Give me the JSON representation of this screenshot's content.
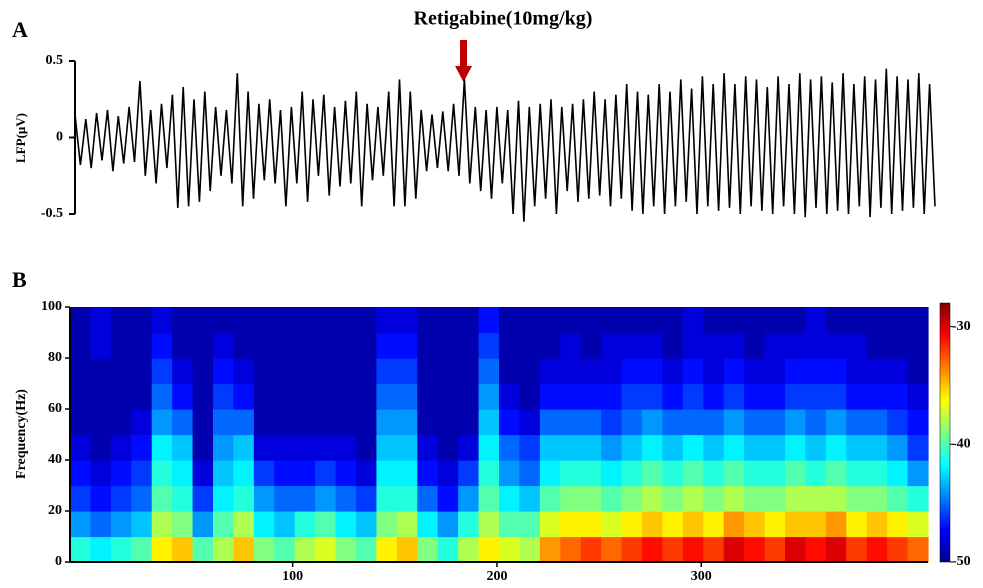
{
  "chart_data": [
    {
      "type": "line",
      "panel": "A",
      "annotation": "Retigabine(10mg/kg)",
      "ylabel": "LFP(μV)",
      "color": "#000000",
      "ylim": [
        -0.5,
        0.5
      ],
      "yticks": [
        0.5,
        0,
        -0.5
      ],
      "values": [
        0.15,
        -0.18,
        0.12,
        -0.2,
        0.16,
        -0.15,
        0.18,
        -0.22,
        0.14,
        -0.17,
        0.2,
        -0.16,
        0.37,
        -0.25,
        0.18,
        -0.3,
        0.22,
        -0.2,
        0.28,
        -0.46,
        0.33,
        -0.45,
        0.25,
        -0.42,
        0.3,
        -0.35,
        0.2,
        -0.25,
        0.18,
        -0.3,
        0.42,
        -0.45,
        0.3,
        -0.4,
        0.22,
        -0.28,
        0.25,
        -0.3,
        0.18,
        -0.45,
        0.2,
        -0.3,
        0.3,
        -0.42,
        0.25,
        -0.25,
        0.28,
        -0.38,
        0.2,
        -0.32,
        0.24,
        -0.3,
        0.3,
        -0.45,
        0.22,
        -0.28,
        0.2,
        -0.25,
        0.3,
        -0.45,
        0.38,
        -0.45,
        0.3,
        -0.4,
        0.18,
        -0.22,
        0.15,
        -0.2,
        0.17,
        -0.22,
        0.22,
        -0.25,
        0.38,
        -0.3,
        0.2,
        -0.35,
        0.18,
        -0.4,
        0.2,
        -0.3,
        0.18,
        -0.5,
        0.24,
        -0.55,
        0.2,
        -0.45,
        0.22,
        -0.4,
        0.25,
        -0.5,
        0.2,
        -0.35,
        0.22,
        -0.42,
        0.25,
        -0.4,
        0.3,
        -0.38,
        0.25,
        -0.45,
        0.28,
        -0.4,
        0.35,
        -0.48,
        0.3,
        -0.5,
        0.28,
        -0.45,
        0.35,
        -0.5,
        0.3,
        -0.45,
        0.38,
        -0.42,
        0.32,
        -0.5,
        0.4,
        -0.45,
        0.35,
        -0.48,
        0.42,
        -0.46,
        0.35,
        -0.5,
        0.4,
        -0.45,
        0.38,
        -0.48,
        0.33,
        -0.5,
        0.4,
        -0.45,
        0.35,
        -0.5,
        0.42,
        -0.52,
        0.38,
        -0.46,
        0.4,
        -0.5,
        0.36,
        -0.48,
        0.42,
        -0.5,
        0.35,
        -0.45,
        0.4,
        -0.52,
        0.38,
        -0.46,
        0.45,
        -0.5,
        0.4,
        -0.48,
        0.38,
        -0.46,
        0.42,
        -0.5,
        0.35,
        -0.45
      ]
    },
    {
      "type": "heatmap",
      "panel": "B",
      "ylabel": "Frequency(Hz)",
      "colormap": "jet",
      "xlim": [
        -9,
        411
      ],
      "xticks": [
        100,
        200,
        300
      ],
      "ylim": [
        0,
        100
      ],
      "yticks": [
        0,
        20,
        40,
        60,
        80,
        100
      ],
      "zlim": [
        -50,
        -28
      ],
      "zticks": [
        -30,
        -40,
        -50
      ],
      "xbins": [
        -9,
        1,
        11,
        21,
        31,
        41,
        51,
        61,
        71,
        81,
        91,
        101,
        111,
        121,
        131,
        141,
        151,
        161,
        171,
        181,
        191,
        201,
        211,
        221,
        231,
        241,
        251,
        261,
        271,
        281,
        291,
        301,
        311,
        321,
        331,
        341,
        351,
        361,
        371,
        381,
        391,
        401,
        411
      ],
      "ybins": [
        0,
        10,
        20,
        30,
        40,
        50,
        60,
        70,
        80,
        90,
        100
      ],
      "values": [
        [
          -41,
          -42,
          -41,
          -40,
          -36,
          -35,
          -40,
          -38,
          -35,
          -39,
          -40,
          -38,
          -37,
          -39,
          -40,
          -36,
          -35,
          -39,
          -41,
          -38,
          -36,
          -37,
          -38,
          -34,
          -33,
          -32,
          -33,
          -32,
          -31,
          -32,
          -31,
          -32,
          -30,
          -31,
          -32,
          -30,
          -31,
          -30,
          -32,
          -31,
          -32,
          -33
        ],
        [
          -44,
          -45,
          -44,
          -43,
          -38,
          -39,
          -44,
          -40,
          -38,
          -42,
          -43,
          -41,
          -40,
          -42,
          -43,
          -39,
          -38,
          -42,
          -44,
          -41,
          -38,
          -40,
          -40,
          -37,
          -36,
          -36,
          -37,
          -36,
          -35,
          -36,
          -35,
          -36,
          -34,
          -35,
          -36,
          -35,
          -35,
          -34,
          -36,
          -35,
          -36,
          -37
        ],
        [
          -46,
          -47,
          -46,
          -45,
          -40,
          -41,
          -46,
          -42,
          -41,
          -44,
          -45,
          -45,
          -44,
          -45,
          -46,
          -41,
          -41,
          -45,
          -47,
          -44,
          -40,
          -42,
          -43,
          -40,
          -39,
          -39,
          -40,
          -39,
          -38,
          -39,
          -38,
          -39,
          -38,
          -39,
          -39,
          -38,
          -38,
          -38,
          -39,
          -39,
          -40,
          -41
        ],
        [
          -47,
          -48,
          -47,
          -46,
          -41,
          -42,
          -48,
          -43,
          -42,
          -46,
          -47,
          -47,
          -46,
          -47,
          -48,
          -42,
          -42,
          -47,
          -48,
          -46,
          -41,
          -44,
          -45,
          -42,
          -41,
          -41,
          -42,
          -41,
          -40,
          -41,
          -40,
          -41,
          -40,
          -41,
          -41,
          -40,
          -41,
          -40,
          -41,
          -41,
          -42,
          -44
        ],
        [
          -48,
          -49,
          -48,
          -47,
          -42,
          -43,
          -49,
          -44,
          -43,
          -48,
          -48,
          -48,
          -48,
          -48,
          -49,
          -43,
          -43,
          -48,
          -49,
          -48,
          -42,
          -45,
          -46,
          -43,
          -43,
          -43,
          -44,
          -43,
          -42,
          -43,
          -42,
          -43,
          -42,
          -43,
          -43,
          -42,
          -43,
          -42,
          -43,
          -43,
          -44,
          -46
        ],
        [
          -49,
          -49,
          -49,
          -48,
          -44,
          -45,
          -49,
          -45,
          -45,
          -49,
          -49,
          -49,
          -49,
          -49,
          -49,
          -44,
          -44,
          -49,
          -49,
          -49,
          -43,
          -47,
          -48,
          -45,
          -45,
          -45,
          -46,
          -45,
          -44,
          -45,
          -45,
          -45,
          -44,
          -45,
          -45,
          -44,
          -45,
          -44,
          -45,
          -45,
          -46,
          -47
        ],
        [
          -49,
          -49,
          -49,
          -49,
          -45,
          -47,
          -49,
          -46,
          -47,
          -49,
          -49,
          -49,
          -49,
          -49,
          -49,
          -45,
          -45,
          -49,
          -49,
          -49,
          -44,
          -48,
          -49,
          -47,
          -47,
          -47,
          -47,
          -46,
          -46,
          -47,
          -46,
          -47,
          -46,
          -47,
          -47,
          -46,
          -46,
          -46,
          -47,
          -47,
          -47,
          -48
        ],
        [
          -49,
          -49,
          -49,
          -49,
          -46,
          -48,
          -49,
          -47,
          -48,
          -49,
          -49,
          -49,
          -49,
          -49,
          -49,
          -46,
          -46,
          -49,
          -49,
          -49,
          -45,
          -49,
          -49,
          -48,
          -48,
          -48,
          -48,
          -47,
          -47,
          -48,
          -47,
          -48,
          -47,
          -48,
          -48,
          -47,
          -47,
          -47,
          -48,
          -48,
          -48,
          -49
        ],
        [
          -49,
          -48,
          -49,
          -49,
          -47,
          -49,
          -49,
          -48,
          -49,
          -49,
          -49,
          -49,
          -49,
          -49,
          -49,
          -47,
          -47,
          -49,
          -49,
          -49,
          -46,
          -49,
          -49,
          -49,
          -48,
          -49,
          -48,
          -48,
          -48,
          -49,
          -48,
          -48,
          -48,
          -49,
          -48,
          -48,
          -48,
          -48,
          -48,
          -49,
          -49,
          -49
        ],
        [
          -49,
          -48,
          -49,
          -49,
          -48,
          -49,
          -49,
          -49,
          -49,
          -49,
          -49,
          -49,
          -49,
          -49,
          -49,
          -48,
          -48,
          -49,
          -49,
          -49,
          -47,
          -49,
          -49,
          -49,
          -49,
          -49,
          -49,
          -49,
          -49,
          -49,
          -48,
          -49,
          -49,
          -49,
          -49,
          -49,
          -48,
          -49,
          -49,
          -49,
          -49,
          -49
        ]
      ]
    }
  ]
}
